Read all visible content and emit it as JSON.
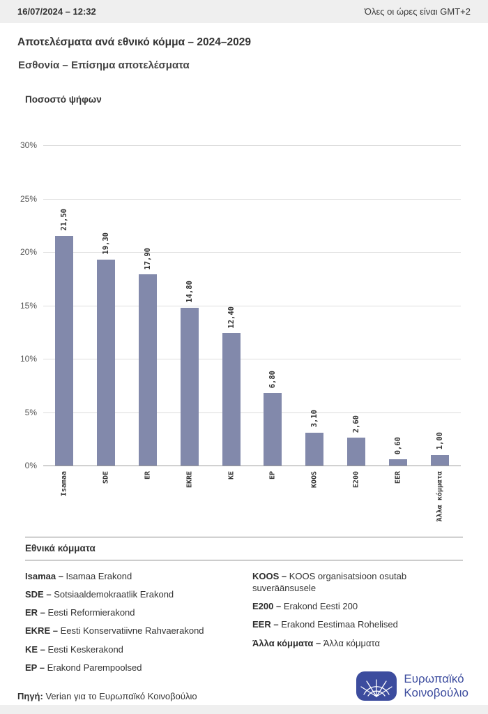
{
  "header": {
    "timestamp": "16/07/2024 – 12:32",
    "timezone_note": "Όλες οι ώρες είναι GMT+2"
  },
  "titles": {
    "main": "Αποτελέσματα ανά εθνικό κόμμα – 2024–2029",
    "subtitle": "Εσθονία – Επίσημα αποτελέσματα"
  },
  "chart_data": {
    "type": "bar",
    "title": "Ποσοστό ψήφων",
    "ylabel": "Ποσοστό ψήφων",
    "xlabel": "",
    "categories": [
      "Isamaa",
      "SDE",
      "ER",
      "EKRE",
      "KE",
      "EP",
      "KOOS",
      "E200",
      "EER",
      "Άλλα κόμματα"
    ],
    "values": [
      21.5,
      19.3,
      17.9,
      14.8,
      12.4,
      6.8,
      3.1,
      2.6,
      0.6,
      1.0
    ],
    "value_labels": [
      "21,50",
      "19,30",
      "17,90",
      "14,80",
      "12,40",
      "6,80",
      "3,10",
      "2,60",
      "0,60",
      "1,00"
    ],
    "ylim": [
      0,
      30
    ],
    "yticks": [
      0,
      5,
      10,
      15,
      20,
      25,
      30
    ],
    "ytick_labels": [
      "0%",
      "5%",
      "10%",
      "15%",
      "20%",
      "25%",
      "30%"
    ],
    "bar_color": "#8289AB",
    "grid": true,
    "legend_position": "none"
  },
  "legend": {
    "title": "Εθνικά κόμματα",
    "columns": [
      {
        "items": [
          {
            "abbr": "Isamaa",
            "name": "Isamaa Erakond"
          },
          {
            "abbr": "SDE",
            "name": "Sotsiaaldemokraatlik Erakond"
          },
          {
            "abbr": "ER",
            "name": "Eesti Reformierakond"
          },
          {
            "abbr": "EKRE",
            "name": "Eesti Konservatiivne Rahvaerakond"
          },
          {
            "abbr": "KE",
            "name": "Eesti Keskerakond"
          },
          {
            "abbr": "EP",
            "name": "Erakond Parempoolsed"
          }
        ]
      },
      {
        "items": [
          {
            "abbr": "KOOS",
            "name": "KOOS organisatsioon osutab suveräänsusele"
          },
          {
            "abbr": "E200",
            "name": "Erakond Eesti 200"
          },
          {
            "abbr": "EER",
            "name": "Erakond Eestimaa Rohelised"
          },
          {
            "abbr": "Άλλα κόμματα",
            "name": "Άλλα κόμματα"
          }
        ]
      }
    ]
  },
  "footer": {
    "source_label": "Πηγή:",
    "source_text": "Verian για το Ευρωπαϊκό Κοινοβούλιο",
    "logo_text_line1": "Ευρωπαϊκό",
    "logo_text_line2": "Κοινοβούλιο",
    "logo_color": "#3C4C9E"
  }
}
